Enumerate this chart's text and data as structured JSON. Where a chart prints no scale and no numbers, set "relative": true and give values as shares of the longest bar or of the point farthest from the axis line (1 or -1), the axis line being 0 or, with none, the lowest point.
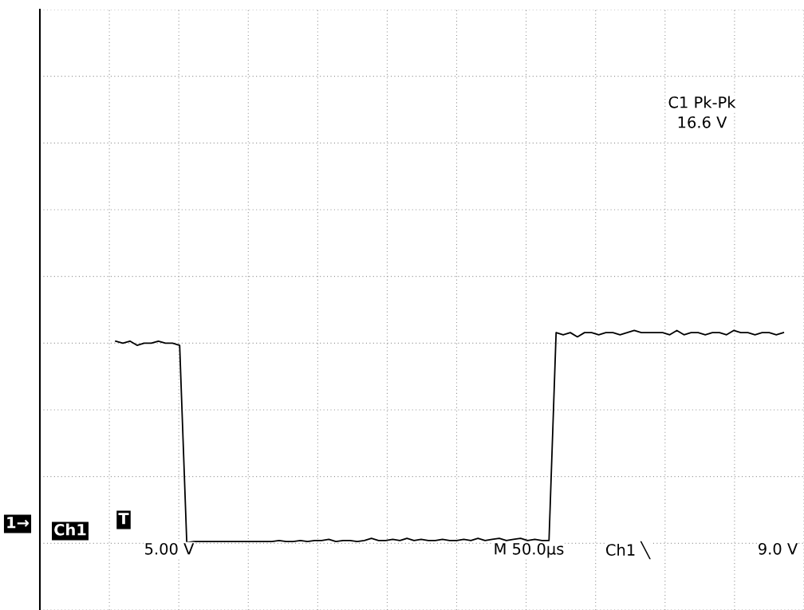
{
  "chart_data": {
    "type": "line",
    "relative": true,
    "grid": true,
    "marker": "none",
    "line_style": "solid",
    "categories": [
      null,
      null,
      null,
      null,
      null,
      null,
      null,
      null,
      null,
      null,
      null,
      null,
      null,
      null,
      null,
      null,
      null,
      null,
      null,
      null,
      null,
      null,
      null,
      null,
      null,
      null,
      null,
      null,
      null,
      null,
      null,
      null,
      null,
      null,
      null,
      null,
      null,
      null,
      null,
      null,
      null,
      null,
      null,
      null,
      null,
      null,
      null,
      null,
      null,
      null,
      null,
      null,
      null,
      null,
      null,
      null,
      null,
      null,
      null,
      null,
      null,
      null,
      null,
      null,
      null,
      null,
      null,
      null,
      null,
      null,
      null,
      null,
      null,
      null,
      null,
      null,
      null,
      null,
      null,
      null,
      null,
      null,
      null,
      null,
      null,
      null,
      null,
      null,
      null,
      null,
      null,
      null,
      null,
      null,
      null
    ],
    "series": [
      {
        "color": "#000000",
        "values": [
          0.95,
          0.94,
          0.95,
          0.93,
          0.94,
          0.94,
          0.95,
          0.94,
          0.94,
          0.93,
          0,
          0.005,
          0.005,
          0.005,
          0.005,
          0.005,
          0.005,
          0.005,
          0.005,
          0.005,
          0.005,
          0.005,
          0.005,
          0.01,
          0.005,
          0.005,
          0.01,
          0.005,
          0.01,
          0.01,
          0.015,
          0.005,
          0.01,
          0.01,
          0.005,
          0.01,
          0.02,
          0.01,
          0.01,
          0.015,
          0.01,
          0.02,
          0.01,
          0.015,
          0.01,
          0.01,
          0.015,
          0.01,
          0.01,
          0.015,
          0.01,
          0.02,
          0.01,
          0.015,
          0.02,
          0.01,
          0.015,
          0.02,
          0.01,
          0.015,
          0.01,
          0.01,
          0.99,
          0.98,
          0.99,
          0.97,
          0.99,
          0.99,
          0.98,
          0.99,
          0.99,
          0.98,
          0.99,
          1.0,
          0.99,
          0.99,
          0.99,
          0.99,
          0.98,
          1.0,
          0.98,
          0.99,
          0.99,
          0.98,
          0.99,
          0.99,
          0.98,
          1.0,
          0.99,
          0.99,
          0.98,
          0.99,
          0.99,
          0.98,
          0.99
        ]
      }
    ],
    "annotations": [
      "C1 Pk-Pk",
      "16.6 V",
      "1→",
      "Ch1",
      "T",
      "5.00 V",
      "M 50.0µs",
      "Ch1 ╲",
      "9.0 V"
    ]
  }
}
